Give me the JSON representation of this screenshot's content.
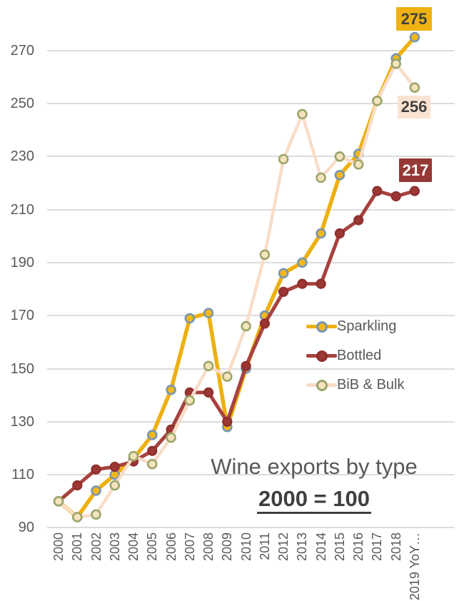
{
  "chart_data": {
    "type": "line",
    "title": "Wine exports by type",
    "subtitle": "2000 = 100",
    "categories": [
      "2000",
      "2001",
      "2002",
      "2003",
      "2004",
      "2005",
      "2006",
      "2007",
      "2008",
      "2009",
      "2010",
      "2011",
      "2012",
      "2013",
      "2014",
      "2015",
      "2016",
      "2017",
      "2018",
      "2019 YoY…"
    ],
    "y_ticks": [
      270,
      250,
      230,
      210,
      190,
      170,
      150,
      130,
      110,
      90
    ],
    "ylim": [
      90,
      280
    ],
    "grid": true,
    "legend_position": "center-right",
    "series": [
      {
        "name": "Sparkling",
        "values": [
          100,
          94,
          104,
          110,
          116,
          125,
          142,
          169,
          171,
          128,
          150,
          170,
          186,
          190,
          201,
          223,
          231,
          251,
          267,
          275
        ],
        "end_label": "275",
        "line_color": "#EDB00F",
        "marker_fill": "#F2B71B",
        "marker_stroke": "#7796B3",
        "label_bg": "#EFB211",
        "label_text_color": "#404040"
      },
      {
        "name": "Bottled",
        "values": [
          100,
          106,
          112,
          113,
          115,
          119,
          127,
          141,
          141,
          130,
          151,
          167,
          179,
          182,
          182,
          201,
          206,
          217,
          215,
          217
        ],
        "end_label": "217",
        "line_color": "#A7423E",
        "marker_fill": "#9C3734",
        "marker_stroke": "#8D2F2D",
        "label_bg": "#963836",
        "label_text_color": "#FFFFFF"
      },
      {
        "name": "BiB & Bulk",
        "values": [
          100,
          94,
          95,
          106,
          117,
          114,
          124,
          138,
          151,
          147,
          166,
          193,
          229,
          246,
          222,
          230,
          227,
          251,
          265,
          256
        ],
        "end_label": "256",
        "line_color": "#F8DDC8",
        "marker_fill": "#F4E3BD",
        "marker_stroke": "#9CA569",
        "label_bg": "#FBE3D2",
        "label_text_color": "#404040"
      }
    ]
  }
}
